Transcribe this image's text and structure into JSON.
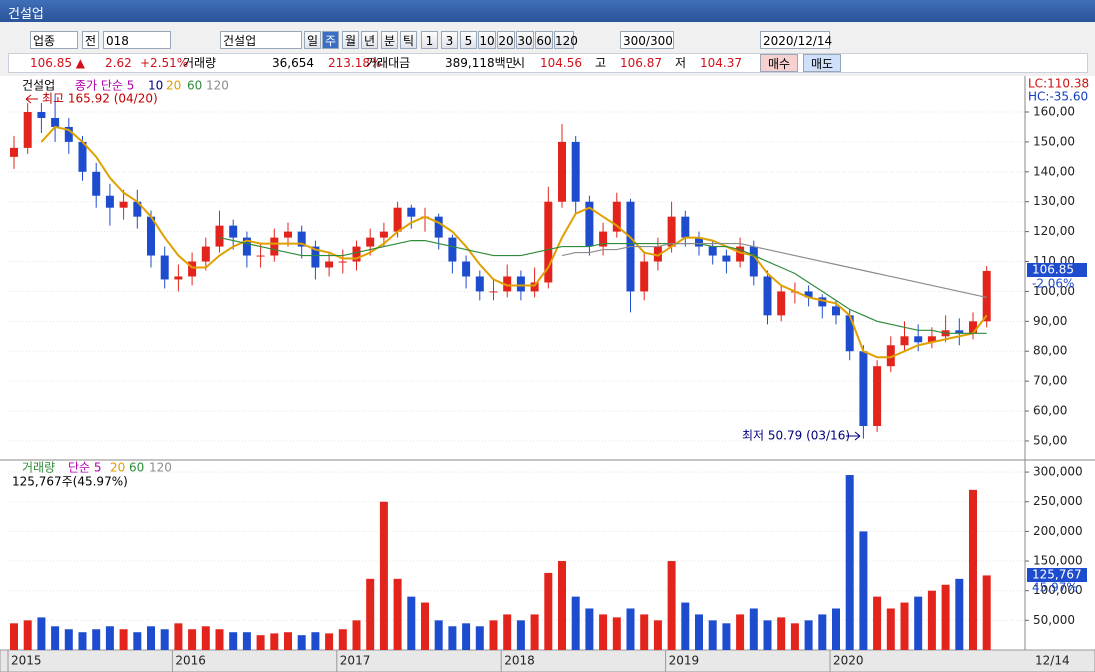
{
  "window_title": "건설업",
  "toolbar": [
    "업종",
    "전",
    "018",
    "건설업",
    "일",
    "주",
    "월",
    "년",
    "분",
    "틱",
    "1",
    "3",
    "5",
    "10",
    "20",
    "30",
    "60",
    "120",
    "300/300",
    "2020/12/14"
  ],
  "info": {
    "price": "106.85 ▲",
    "change": "2.62",
    "change_pct": "+2.51%",
    "volume_label": "거래량",
    "volume": "36,654",
    "volume_pct": "213.18%",
    "amount_label": "거래대금",
    "amount": "389,118백만",
    "open_label": "시",
    "open": "104.56",
    "high_label": "고",
    "high": "106.87",
    "low_label": "저",
    "low": "104.37",
    "buy": "매수",
    "sell": "매도"
  },
  "chart_data": [
    {
      "type": "candlestick",
      "title": "건설업",
      "legend": [
        "종가 단순 5",
        "10",
        "20",
        "60",
        "120"
      ],
      "annotations": {
        "high": "최고 165.92 (04/20)",
        "low": "최저 50.79 (03/16)",
        "lc": "LC:110.38",
        "hc": "HC:-35.60",
        "last": "106.85",
        "last_pct": "-2.06%"
      },
      "up_color": "#e3241c",
      "down_color": "#1e4ccf",
      "categories": [
        "2015",
        null,
        null,
        null,
        null,
        null,
        null,
        null,
        null,
        null,
        null,
        null,
        "2016",
        null,
        null,
        null,
        null,
        null,
        null,
        null,
        null,
        null,
        null,
        null,
        "2017",
        null,
        null,
        null,
        null,
        null,
        null,
        null,
        null,
        null,
        null,
        null,
        "2018",
        null,
        null,
        null,
        null,
        null,
        null,
        null,
        null,
        null,
        null,
        null,
        "2019",
        null,
        null,
        null,
        null,
        null,
        null,
        null,
        null,
        null,
        null,
        null,
        "2020",
        null,
        null,
        null,
        null,
        null,
        null,
        null,
        null,
        null,
        null,
        null
      ],
      "end_label": "12/14",
      "open": [
        145,
        148,
        160,
        158,
        155,
        150,
        140,
        132,
        128,
        130,
        125,
        112,
        104,
        105,
        110,
        115,
        122,
        118,
        112,
        112,
        118,
        120,
        115,
        108,
        110,
        110,
        115,
        118,
        120,
        128,
        125,
        125,
        118,
        110,
        105,
        100,
        100,
        105,
        100,
        103,
        130,
        150,
        130,
        115,
        120,
        130,
        100,
        110,
        115,
        125,
        118,
        115,
        112,
        110,
        115,
        105,
        92,
        100,
        100,
        98,
        95,
        92,
        80,
        55,
        75,
        82,
        85,
        83,
        85,
        87,
        86,
        90
      ],
      "high": [
        152,
        163,
        163,
        165.92,
        158,
        152,
        143,
        136,
        134,
        134,
        127,
        115,
        109,
        113,
        118,
        127,
        124,
        120,
        116,
        121,
        123,
        122,
        117,
        113,
        114,
        117,
        121,
        123,
        130,
        129,
        128,
        126,
        119,
        112,
        107,
        104,
        109,
        107,
        108,
        135,
        156,
        152,
        132,
        123,
        133,
        131,
        113,
        118,
        130,
        127,
        120,
        117,
        114,
        118,
        117,
        107,
        102,
        103,
        102,
        99,
        97,
        94,
        82,
        77,
        85,
        90,
        89,
        88,
        92,
        91,
        93,
        108.5
      ],
      "low": [
        141,
        146,
        153,
        150,
        146,
        137,
        128,
        122,
        124,
        121,
        108,
        101,
        100,
        102,
        107,
        113,
        114,
        108,
        108,
        110,
        115,
        111,
        104,
        105,
        106,
        107,
        112,
        115,
        118,
        121,
        120,
        114,
        106,
        101,
        97,
        97,
        98,
        97,
        98,
        101,
        128,
        126,
        112,
        112,
        118,
        93,
        97,
        107,
        113,
        115,
        112,
        109,
        106,
        108,
        102,
        89,
        90,
        96,
        95,
        91,
        89,
        77,
        50.79,
        53,
        73,
        80,
        80,
        81,
        83,
        82,
        84,
        88
      ],
      "close": [
        148,
        160,
        158,
        155,
        150,
        140,
        132,
        128,
        130,
        125,
        112,
        104,
        105,
        110,
        115,
        122,
        118,
        112,
        112,
        118,
        120,
        115,
        108,
        110,
        110,
        115,
        118,
        120,
        128,
        125,
        125,
        118,
        110,
        105,
        100,
        100,
        105,
        100,
        103,
        130,
        150,
        130,
        115,
        120,
        130,
        100,
        110,
        115,
        125,
        118,
        115,
        112,
        110,
        115,
        105,
        92,
        100,
        100,
        98,
        95,
        92,
        80,
        55,
        75,
        82,
        85,
        83,
        85,
        87,
        86,
        90,
        106.85
      ],
      "series": [
        {
          "name": "20",
          "color": "#e0a000",
          "values": [
            null,
            null,
            150,
            155,
            154,
            150,
            145,
            138,
            133,
            130,
            125,
            118,
            112,
            108,
            108,
            112,
            115,
            117,
            116,
            116,
            116,
            116,
            114,
            113,
            111,
            111,
            113,
            116,
            120,
            123,
            125,
            123,
            120,
            115,
            109,
            104,
            102,
            102,
            102,
            108,
            118,
            126,
            128,
            125,
            122,
            118,
            113,
            112,
            115,
            118,
            118,
            117,
            115,
            113,
            112,
            106,
            102,
            100,
            98,
            97,
            96,
            92,
            80,
            78,
            78,
            80,
            82,
            83,
            84,
            85,
            86,
            92
          ]
        },
        {
          "name": "60",
          "color": "#2e8b3a",
          "values": [
            null,
            null,
            null,
            null,
            null,
            null,
            null,
            null,
            null,
            null,
            null,
            null,
            null,
            null,
            null,
            118,
            117,
            116,
            115,
            114,
            113,
            112,
            112,
            112,
            112,
            113,
            114,
            115,
            116,
            117,
            117,
            116,
            115,
            114,
            113,
            112,
            112,
            112,
            113,
            114,
            115,
            115,
            115,
            116,
            116,
            116,
            116,
            116,
            116,
            116,
            116,
            115,
            115,
            114,
            112,
            110,
            108,
            106,
            103,
            100,
            97,
            94,
            92,
            90,
            89,
            88,
            87,
            87,
            86,
            86,
            86,
            86
          ]
        },
        {
          "name": "120",
          "color": "#8c8c8c",
          "values": [
            null,
            null,
            null,
            null,
            null,
            null,
            null,
            null,
            null,
            null,
            null,
            null,
            null,
            null,
            null,
            null,
            null,
            null,
            null,
            null,
            null,
            null,
            null,
            null,
            null,
            null,
            null,
            null,
            null,
            null,
            null,
            null,
            null,
            null,
            null,
            null,
            null,
            null,
            null,
            null,
            112,
            113,
            113,
            114,
            114,
            115,
            115,
            115,
            116,
            116,
            116,
            116,
            116,
            116,
            115,
            114,
            113,
            112,
            111,
            110,
            109,
            108,
            107,
            106,
            105,
            104,
            103,
            102,
            101,
            100,
            99,
            98
          ]
        }
      ],
      "ylim": [
        44.3,
        170.7
      ],
      "yticks": [
        {
          "value": 50,
          "label": "50,00"
        },
        {
          "value": 60,
          "label": "60,00"
        },
        {
          "value": 70,
          "label": "70,00"
        },
        {
          "value": 80,
          "label": "80,00"
        },
        {
          "value": 90,
          "label": "90,00"
        },
        {
          "value": 100,
          "label": "100,00"
        },
        {
          "value": 110,
          "label": "110,00"
        },
        {
          "value": 120,
          "label": "120,00"
        },
        {
          "value": 130,
          "label": "130,00"
        },
        {
          "value": 140,
          "label": "140,00"
        },
        {
          "value": 150,
          "label": "150,00"
        },
        {
          "value": 160,
          "label": "160,00"
        }
      ],
      "grid": true
    },
    {
      "type": "bar",
      "title": "거래량",
      "legend": [
        "단순 5",
        "20",
        "60",
        "120"
      ],
      "annotations": {
        "info": "125,767주(45.97%)",
        "last": "125,767",
        "last_pct": "45.97%"
      },
      "values": [
        45000,
        50000,
        55000,
        40000,
        35000,
        30000,
        35000,
        40000,
        35000,
        30000,
        40000,
        35000,
        45000,
        35000,
        40000,
        35000,
        30000,
        30000,
        25000,
        28000,
        30000,
        25000,
        30000,
        28000,
        35000,
        50000,
        120000,
        250000,
        120000,
        90000,
        80000,
        50000,
        40000,
        45000,
        40000,
        50000,
        60000,
        50000,
        60000,
        130000,
        150000,
        90000,
        70000,
        60000,
        55000,
        70000,
        60000,
        50000,
        150000,
        80000,
        60000,
        50000,
        45000,
        60000,
        70000,
        50000,
        55000,
        45000,
        50000,
        60000,
        70000,
        295000,
        200000,
        90000,
        70000,
        80000,
        90000,
        100000,
        110000,
        120000,
        270000,
        125767
      ],
      "ylim": [
        0,
        317000
      ],
      "yticks": [
        {
          "value": 50000,
          "label": "50,000"
        },
        {
          "value": 100000,
          "label": "100,000"
        },
        {
          "value": 150000,
          "label": "150,000"
        },
        {
          "value": 200000,
          "label": "200,000"
        },
        {
          "value": 250000,
          "label": "250,000"
        },
        {
          "value": 300000,
          "label": "300,000"
        }
      ],
      "grid": true
    }
  ]
}
